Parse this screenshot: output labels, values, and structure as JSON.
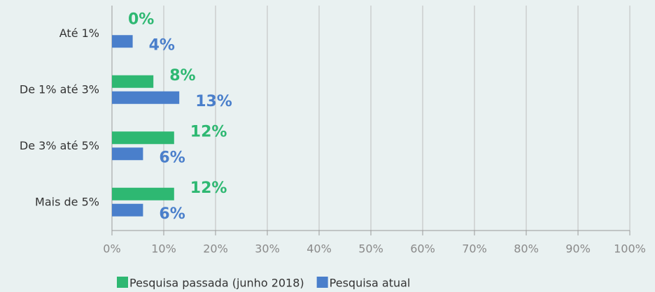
{
  "chart_data": {
    "type": "bar",
    "orientation": "horizontal",
    "categories": [
      "Até 1%",
      "De 1% até 3%",
      "De 3% até 5%",
      "Mais de 5%"
    ],
    "series": [
      {
        "name": "Pesquisa passada (junho 2018)",
        "color": "#2eb872",
        "values": [
          0,
          8,
          12,
          12
        ],
        "value_labels": [
          "0%",
          "8%",
          "12%",
          "12%"
        ]
      },
      {
        "name": "Pesquisa atual",
        "color": "#4a7fcb",
        "values": [
          4,
          13,
          6,
          6
        ],
        "value_labels": [
          "4%",
          "13%",
          "6%",
          "6%"
        ]
      }
    ],
    "xlim": [
      0,
      100
    ],
    "xticks": [
      {
        "value": 0,
        "label": "0%"
      },
      {
        "value": 10,
        "label": "10%"
      },
      {
        "value": 20,
        "label": "20%"
      },
      {
        "value": 30,
        "label": "30%"
      },
      {
        "value": 40,
        "label": "40%"
      },
      {
        "value": 50,
        "label": "50%"
      },
      {
        "value": 60,
        "label": "60%"
      },
      {
        "value": 70,
        "label": "70%"
      },
      {
        "value": 80,
        "label": "80%"
      },
      {
        "value": 90,
        "label": "90%"
      },
      {
        "value": 100,
        "label": "100%"
      }
    ],
    "grid": true,
    "legend": "bottom"
  }
}
